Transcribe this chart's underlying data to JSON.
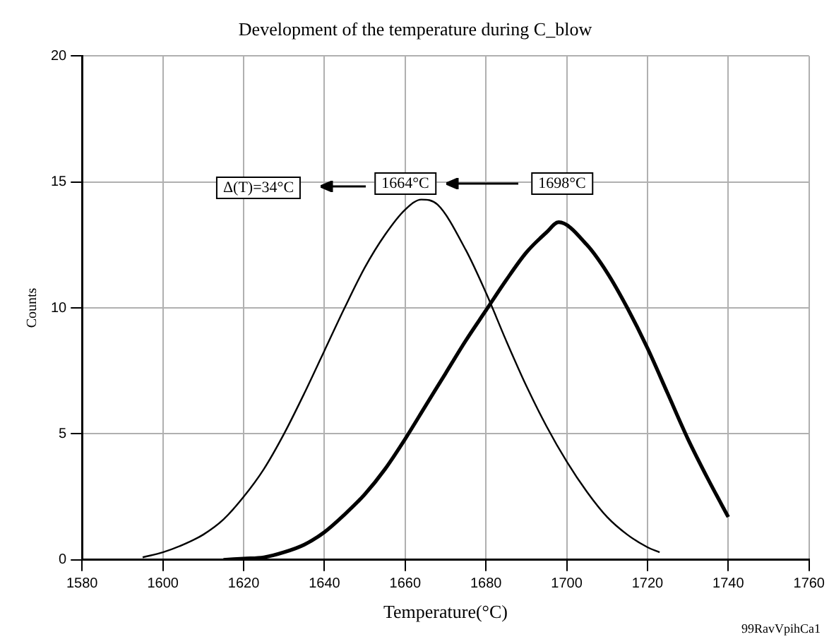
{
  "chart_data": {
    "type": "line",
    "title": "Development of the temperature during C_blow",
    "xlabel": "Temperature(°C)",
    "ylabel": "Counts",
    "xlim": [
      1580,
      1760
    ],
    "xticks": [
      1580,
      1600,
      1620,
      1640,
      1660,
      1680,
      1700,
      1720,
      1740,
      1760
    ],
    "ylim": [
      0,
      20
    ],
    "yticks": [
      0,
      5,
      10,
      15,
      20
    ],
    "grid": true,
    "legend": false,
    "marker": "none",
    "line_style": "solid",
    "annotations": [
      "Δ(T)=34°C",
      "1664°C",
      "1698°C",
      "99RavVpihCa1"
    ],
    "series": [
      {
        "color": "#000000",
        "x": [
          1595,
          1600,
          1605,
          1610,
          1615,
          1620,
          1625,
          1630,
          1635,
          1640,
          1645,
          1650,
          1655,
          1660,
          1664,
          1668,
          1675,
          1680,
          1685,
          1690,
          1695,
          1700,
          1705,
          1710,
          1715,
          1720,
          1723
        ],
        "values": [
          0.1,
          0.3,
          0.6,
          1.0,
          1.6,
          2.5,
          3.6,
          5.0,
          6.6,
          8.3,
          10.0,
          11.6,
          12.9,
          13.9,
          14.3,
          14.1,
          12.3,
          10.6,
          8.7,
          6.9,
          5.3,
          3.9,
          2.7,
          1.7,
          1.0,
          0.5,
          0.3
        ]
      },
      {
        "color": "#000000",
        "x": [
          1615,
          1620,
          1625,
          1630,
          1635,
          1640,
          1645,
          1650,
          1655,
          1660,
          1665,
          1670,
          1675,
          1680,
          1685,
          1690,
          1695,
          1698,
          1705,
          1710,
          1715,
          1720,
          1725,
          1730,
          1735,
          1740
        ],
        "values": [
          0,
          0.05,
          0.1,
          0.3,
          0.6,
          1.1,
          1.8,
          2.6,
          3.6,
          4.8,
          6.1,
          7.4,
          8.7,
          9.9,
          11.1,
          12.2,
          13.0,
          13.4,
          12.5,
          11.4,
          10.0,
          8.4,
          6.6,
          4.8,
          3.2,
          1.7
        ]
      }
    ]
  }
}
